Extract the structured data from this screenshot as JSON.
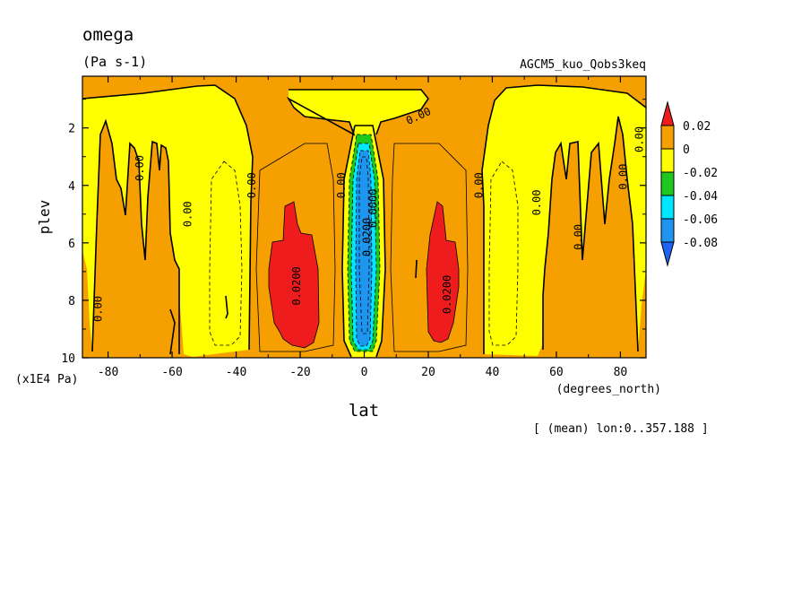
{
  "chart_data": {
    "type": "heatmap",
    "title": "omega",
    "units": "(Pa s-1)",
    "dataset": "AGCM5_kuo_Qobs3keq",
    "xlabel": "lat",
    "xunits": "(degrees_north)",
    "ylabel": "plev",
    "yunits": "(x1E4 Pa)",
    "note": "[ (mean) lon:0..357.188 ]",
    "xlim": [
      -88,
      88
    ],
    "ylim": [
      10,
      0.2
    ],
    "xticks": [
      -80,
      -60,
      -40,
      -20,
      0,
      20,
      40,
      60,
      80
    ],
    "xtick_labels": [
      "-80",
      "-60",
      "-40",
      "-20",
      "0",
      "20",
      "40",
      "60",
      "80"
    ],
    "yticks": [
      2,
      4,
      6,
      8,
      10
    ],
    "ytick_labels": [
      "2",
      "4",
      "6",
      "8",
      "10"
    ],
    "colorbar": {
      "levels": [
        "0.02",
        "0",
        "-0.02",
        "-0.04",
        "-0.06",
        "-0.08"
      ],
      "colors": [
        "#ee1c1c",
        "#f5a000",
        "#ffff00",
        "#1ec81e",
        "#00e6ff",
        "#1e96f0",
        "#1e64f0"
      ]
    },
    "contour_labels": [
      {
        "text": "0.00",
        "lat": -83,
        "plev": 8.3,
        "rotate": -90
      },
      {
        "text": "0.00",
        "lat": -70,
        "plev": 3.4,
        "rotate": -90
      },
      {
        "text": "0.00",
        "lat": -55,
        "plev": 5.0,
        "rotate": -90
      },
      {
        "text": "0.00",
        "lat": -35,
        "plev": 4.0,
        "rotate": -90
      },
      {
        "text": "0.0200",
        "lat": -21,
        "plev": 7.5,
        "rotate": -90
      },
      {
        "text": "0.00",
        "lat": -7,
        "plev": 4.0,
        "rotate": -90
      },
      {
        "text": "0.00",
        "lat": 17,
        "plev": 1.6,
        "rotate": -25
      },
      {
        "text": "0.0200",
        "lat": 26,
        "plev": 7.8,
        "rotate": -90
      },
      {
        "text": "0.00",
        "lat": 36,
        "plev": 4.0,
        "rotate": -90
      },
      {
        "text": "0.00",
        "lat": 54,
        "plev": 4.6,
        "rotate": -90
      },
      {
        "text": "0.00",
        "lat": 67,
        "plev": 5.8,
        "rotate": -90
      },
      {
        "text": "0.00",
        "lat": 81,
        "plev": 3.7,
        "rotate": -90
      },
      {
        "text": "0.00",
        "lat": 86,
        "plev": 2.4,
        "rotate": -90
      },
      {
        "text": "0.0000",
        "lat": 3,
        "plev": 4.8,
        "rotate": -90
      },
      {
        "text": "0.0200",
        "lat": 1,
        "plev": 5.8,
        "rotate": -90
      }
    ]
  }
}
